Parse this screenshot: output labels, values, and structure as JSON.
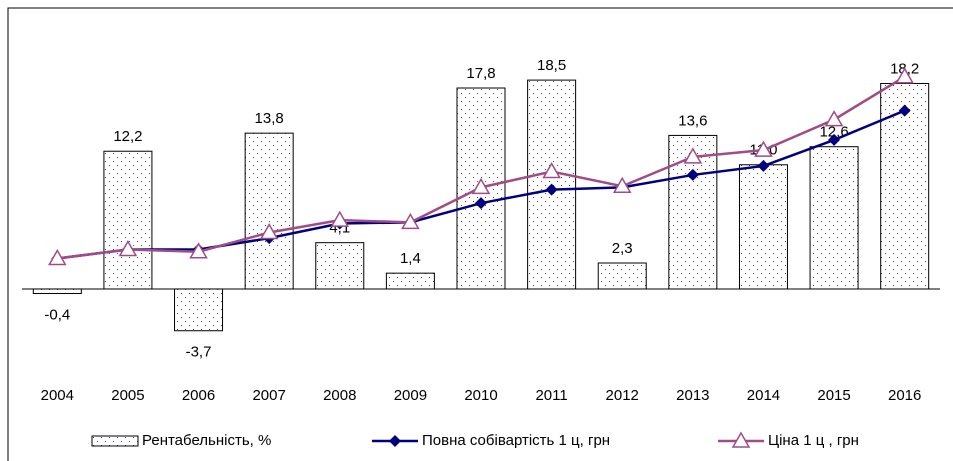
{
  "chart_data": {
    "type": "bar-line",
    "categories": [
      "2004",
      "2005",
      "2006",
      "2007",
      "2008",
      "2009",
      "2010",
      "2011",
      "2012",
      "2013",
      "2014",
      "2015",
      "2016"
    ],
    "ylim": [
      -7,
      24
    ],
    "series": [
      {
        "name": "Рентабельність, %",
        "type": "bar",
        "color": "#000000",
        "values": [
          -0.4,
          12.2,
          -3.7,
          13.8,
          4.1,
          1.4,
          17.8,
          18.5,
          2.3,
          13.6,
          11.0,
          12.6,
          18.2
        ],
        "value_labels": [
          "-0,4",
          "12,2",
          "-3,7",
          "13,8",
          "4,1",
          "1,4",
          "17,8",
          "18,5",
          "2,3",
          "13,6",
          "11,0",
          "12,6",
          "18,2"
        ]
      },
      {
        "name": "Повна собівартість 1 ц, грн",
        "type": "line",
        "marker": "diamond",
        "color": "#000080",
        "values": [
          2.7,
          3.5,
          3.5,
          4.5,
          5.8,
          5.9,
          7.6,
          8.8,
          9.0,
          10.1,
          10.9,
          13.2,
          15.8
        ]
      },
      {
        "name": "Ціна 1 ц , грн",
        "type": "line",
        "marker": "triangle",
        "color": "#a04c86",
        "values": [
          2.7,
          3.5,
          3.3,
          5.0,
          6.1,
          5.9,
          9.0,
          10.4,
          9.1,
          11.7,
          12.3,
          15.0,
          18.8
        ]
      }
    ]
  }
}
